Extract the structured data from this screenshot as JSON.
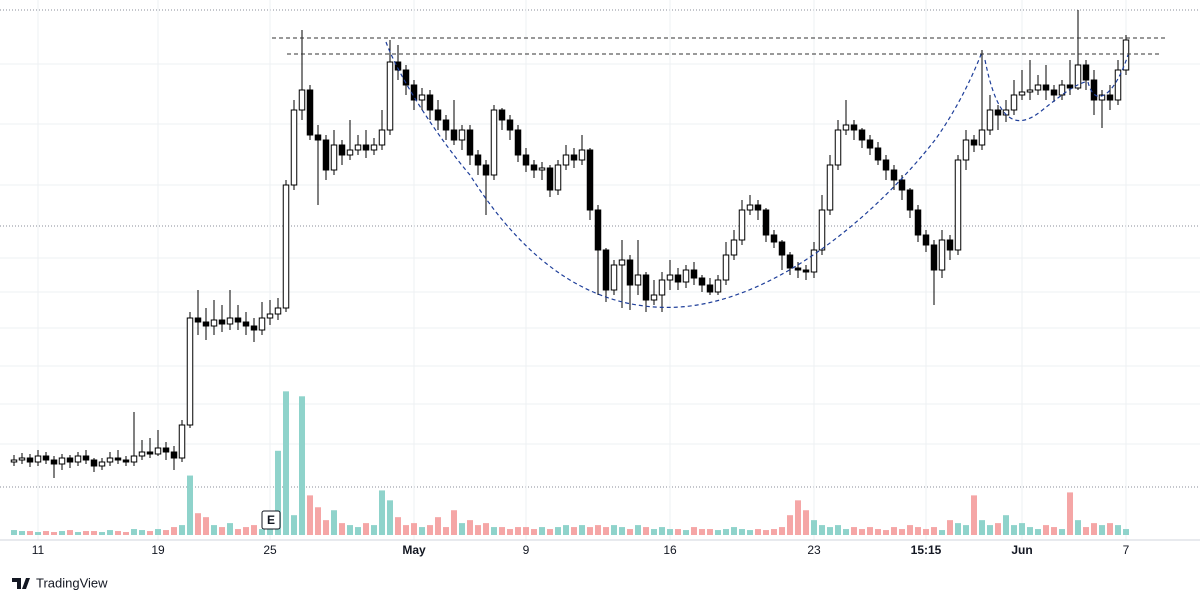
{
  "chart_data": {
    "type": "candlestick",
    "ylim": [
      0,
      540
    ],
    "y2lim": [
      0,
      540
    ],
    "grid": true,
    "up_color": "#ffffff",
    "down_color": "#000000",
    "volume_up_color": "#8fd3cb",
    "volume_down_color": "#f5a6a6",
    "earnings_marker": "E",
    "brand": "TradingView",
    "xticks": [
      {
        "value": 3,
        "label": "11"
      },
      {
        "value": 18,
        "label": "19"
      },
      {
        "value": 32,
        "label": "25"
      },
      {
        "value": 50,
        "label": "May"
      },
      {
        "value": 64,
        "label": "9"
      },
      {
        "value": 82,
        "label": "16"
      },
      {
        "value": 100,
        "label": "23"
      },
      {
        "value": 114,
        "label": "15:15"
      },
      {
        "value": 126,
        "label": "Jun"
      },
      {
        "value": 139,
        "label": "7"
      }
    ],
    "ohlc": [
      [
        78,
        85,
        74,
        80
      ],
      [
        80,
        87,
        76,
        82
      ],
      [
        82,
        86,
        73,
        78
      ],
      [
        78,
        90,
        74,
        84
      ],
      [
        84,
        88,
        76,
        80
      ],
      [
        80,
        84,
        62,
        76
      ],
      [
        76,
        86,
        70,
        82
      ],
      [
        82,
        85,
        72,
        78
      ],
      [
        78,
        88,
        74,
        84
      ],
      [
        84,
        90,
        76,
        80
      ],
      [
        80,
        82,
        68,
        74
      ],
      [
        74,
        82,
        70,
        78
      ],
      [
        78,
        88,
        74,
        82
      ],
      [
        82,
        90,
        76,
        80
      ],
      [
        80,
        84,
        74,
        78
      ],
      [
        78,
        128,
        74,
        84
      ],
      [
        84,
        100,
        80,
        88
      ],
      [
        88,
        102,
        82,
        86
      ],
      [
        86,
        110,
        84,
        92
      ],
      [
        92,
        98,
        80,
        88
      ],
      [
        88,
        94,
        70,
        82
      ],
      [
        82,
        120,
        78,
        115
      ],
      [
        115,
        228,
        112,
        222
      ],
      [
        222,
        250,
        205,
        218
      ],
      [
        218,
        232,
        200,
        214
      ],
      [
        214,
        240,
        205,
        220
      ],
      [
        220,
        235,
        208,
        216
      ],
      [
        216,
        250,
        210,
        222
      ],
      [
        222,
        235,
        210,
        218
      ],
      [
        218,
        228,
        205,
        214
      ],
      [
        214,
        222,
        198,
        210
      ],
      [
        210,
        238,
        205,
        222
      ],
      [
        222,
        240,
        215,
        226
      ],
      [
        226,
        242,
        220,
        232
      ],
      [
        232,
        360,
        228,
        355
      ],
      [
        355,
        440,
        350,
        430
      ],
      [
        430,
        510,
        420,
        450
      ],
      [
        450,
        455,
        400,
        405
      ],
      [
        405,
        415,
        335,
        400
      ],
      [
        400,
        405,
        360,
        370
      ],
      [
        370,
        410,
        365,
        395
      ],
      [
        395,
        400,
        375,
        385
      ],
      [
        385,
        420,
        380,
        390
      ],
      [
        390,
        405,
        385,
        395
      ],
      [
        395,
        410,
        382,
        390
      ],
      [
        390,
        402,
        385,
        395
      ],
      [
        395,
        430,
        390,
        410
      ],
      [
        410,
        500,
        405,
        478
      ],
      [
        478,
        495,
        460,
        470
      ],
      [
        470,
        475,
        445,
        455
      ],
      [
        455,
        460,
        430,
        440
      ],
      [
        440,
        452,
        430,
        445
      ],
      [
        445,
        450,
        420,
        430
      ],
      [
        430,
        440,
        410,
        420
      ],
      [
        420,
        425,
        400,
        410
      ],
      [
        410,
        440,
        395,
        400
      ],
      [
        400,
        415,
        390,
        410
      ],
      [
        410,
        415,
        375,
        385
      ],
      [
        385,
        390,
        365,
        375
      ],
      [
        375,
        380,
        325,
        365
      ],
      [
        365,
        435,
        360,
        430
      ],
      [
        430,
        432,
        410,
        420
      ],
      [
        420,
        425,
        400,
        410
      ],
      [
        410,
        415,
        378,
        385
      ],
      [
        385,
        392,
        368,
        375
      ],
      [
        375,
        380,
        362,
        370
      ],
      [
        370,
        378,
        360,
        372
      ],
      [
        372,
        375,
        343,
        350
      ],
      [
        350,
        380,
        345,
        375
      ],
      [
        375,
        395,
        370,
        385
      ],
      [
        385,
        392,
        372,
        380
      ],
      [
        380,
        405,
        375,
        390
      ],
      [
        390,
        392,
        320,
        330
      ],
      [
        330,
        335,
        245,
        290
      ],
      [
        290,
        292,
        238,
        250
      ],
      [
        250,
        280,
        245,
        275
      ],
      [
        275,
        300,
        232,
        280
      ],
      [
        280,
        285,
        230,
        255
      ],
      [
        255,
        300,
        245,
        265
      ],
      [
        265,
        268,
        228,
        240
      ],
      [
        240,
        260,
        235,
        245
      ],
      [
        245,
        268,
        228,
        260
      ],
      [
        260,
        280,
        250,
        265
      ],
      [
        265,
        272,
        250,
        258
      ],
      [
        258,
        275,
        252,
        270
      ],
      [
        270,
        278,
        255,
        262
      ],
      [
        262,
        265,
        248,
        255
      ],
      [
        255,
        262,
        245,
        248
      ],
      [
        248,
        265,
        245,
        260
      ],
      [
        260,
        298,
        255,
        285
      ],
      [
        285,
        310,
        280,
        300
      ],
      [
        300,
        340,
        295,
        330
      ],
      [
        330,
        345,
        325,
        335
      ],
      [
        335,
        340,
        320,
        330
      ],
      [
        330,
        332,
        298,
        305
      ],
      [
        305,
        310,
        292,
        298
      ],
      [
        298,
        300,
        270,
        285
      ],
      [
        285,
        288,
        265,
        272
      ],
      [
        272,
        278,
        262,
        270
      ],
      [
        270,
        275,
        260,
        268
      ],
      [
        268,
        298,
        262,
        290
      ],
      [
        290,
        345,
        285,
        330
      ],
      [
        330,
        385,
        325,
        375
      ],
      [
        375,
        420,
        370,
        410
      ],
      [
        410,
        440,
        405,
        415
      ],
      [
        415,
        420,
        400,
        410
      ],
      [
        410,
        412,
        392,
        400
      ],
      [
        400,
        405,
        385,
        392
      ],
      [
        392,
        398,
        375,
        380
      ],
      [
        380,
        385,
        360,
        370
      ],
      [
        370,
        375,
        350,
        360
      ],
      [
        360,
        365,
        340,
        350
      ],
      [
        350,
        352,
        322,
        330
      ],
      [
        330,
        335,
        298,
        305
      ],
      [
        305,
        310,
        288,
        295
      ],
      [
        295,
        300,
        235,
        270
      ],
      [
        270,
        310,
        262,
        300
      ],
      [
        300,
        305,
        280,
        290
      ],
      [
        290,
        385,
        285,
        380
      ],
      [
        380,
        410,
        370,
        400
      ],
      [
        400,
        405,
        388,
        395
      ],
      [
        395,
        490,
        390,
        410
      ],
      [
        410,
        445,
        405,
        430
      ],
      [
        430,
        435,
        410,
        425
      ],
      [
        425,
        440,
        418,
        430
      ],
      [
        430,
        460,
        425,
        445
      ],
      [
        445,
        470,
        440,
        448
      ],
      [
        448,
        480,
        440,
        450
      ],
      [
        450,
        465,
        445,
        455
      ],
      [
        455,
        475,
        440,
        450
      ],
      [
        450,
        455,
        438,
        445
      ],
      [
        445,
        460,
        440,
        455
      ],
      [
        455,
        480,
        445,
        452
      ],
      [
        452,
        530,
        450,
        475
      ],
      [
        475,
        480,
        450,
        460
      ],
      [
        460,
        470,
        425,
        440
      ],
      [
        440,
        450,
        412,
        445
      ],
      [
        445,
        455,
        430,
        440
      ],
      [
        440,
        480,
        435,
        470
      ],
      [
        470,
        505,
        465,
        500
      ]
    ],
    "volume": [
      5,
      4,
      4,
      3,
      4,
      3,
      4,
      5,
      3,
      4,
      4,
      3,
      5,
      4,
      3,
      6,
      5,
      4,
      6,
      5,
      8,
      10,
      60,
      22,
      18,
      10,
      8,
      12,
      6,
      8,
      10,
      6,
      8,
      85,
      145,
      20,
      140,
      40,
      28,
      15,
      25,
      12,
      10,
      8,
      12,
      10,
      45,
      35,
      18,
      10,
      12,
      8,
      10,
      18,
      8,
      25,
      12,
      15,
      10,
      12,
      8,
      8,
      6,
      8,
      8,
      6,
      8,
      6,
      8,
      10,
      8,
      10,
      8,
      10,
      8,
      10,
      8,
      6,
      10,
      8,
      6,
      8,
      6,
      6,
      5,
      8,
      6,
      6,
      5,
      6,
      8,
      6,
      5,
      6,
      5,
      6,
      8,
      20,
      35,
      25,
      15,
      10,
      8,
      10,
      6,
      8,
      6,
      8,
      6,
      5,
      8,
      6,
      10,
      8,
      6,
      8,
      5,
      15,
      12,
      10,
      40,
      15,
      10,
      12,
      20,
      10,
      12,
      8,
      6,
      10,
      8,
      6,
      43,
      15,
      8,
      12,
      10,
      12,
      10,
      6
    ]
  }
}
